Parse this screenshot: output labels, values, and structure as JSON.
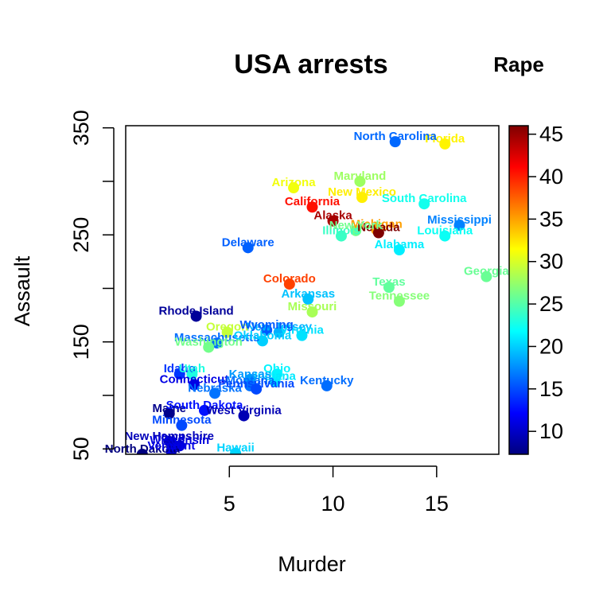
{
  "chart_data": {
    "type": "scatter",
    "title": "USA arrests",
    "xlabel": "Murder",
    "ylabel": "Assault",
    "xlim": [
      0,
      18
    ],
    "ylim": [
      45,
      352
    ],
    "xticks": [
      5,
      10,
      15
    ],
    "yticks": [
      50,
      150,
      250,
      350
    ],
    "grid": false,
    "colorbar": {
      "title": "Rape",
      "min": 7.3,
      "max": 46,
      "ticks": [
        10,
        15,
        20,
        25,
        30,
        35,
        40,
        45
      ],
      "placement": "right",
      "palette": [
        "#00007F",
        "#0000FF",
        "#007FFF",
        "#00FFFF",
        "#7FFF7F",
        "#FFFF00",
        "#FF7F00",
        "#FF0000",
        "#7F0000"
      ]
    },
    "points": [
      {
        "label": "Alabama",
        "x": 13.2,
        "y": 236,
        "color_value": 21.2
      },
      {
        "label": "Alaska",
        "x": 10.0,
        "y": 263,
        "color_value": 44.5
      },
      {
        "label": "Arizona",
        "x": 8.1,
        "y": 294,
        "color_value": 31.0
      },
      {
        "label": "Arkansas",
        "x": 8.8,
        "y": 190,
        "color_value": 19.5
      },
      {
        "label": "California",
        "x": 9.0,
        "y": 276,
        "color_value": 40.6
      },
      {
        "label": "Colorado",
        "x": 7.9,
        "y": 204,
        "color_value": 38.7
      },
      {
        "label": "Connecticut",
        "x": 3.3,
        "y": 110,
        "color_value": 11.1
      },
      {
        "label": "Delaware",
        "x": 5.9,
        "y": 238,
        "color_value": 15.8
      },
      {
        "label": "Florida",
        "x": 15.4,
        "y": 335,
        "color_value": 31.9
      },
      {
        "label": "Georgia",
        "x": 17.4,
        "y": 211,
        "color_value": 25.8
      },
      {
        "label": "Hawaii",
        "x": 5.3,
        "y": 46,
        "color_value": 20.2
      },
      {
        "label": "Idaho",
        "x": 2.6,
        "y": 120,
        "color_value": 14.2
      },
      {
        "label": "Illinois",
        "x": 10.4,
        "y": 249,
        "color_value": 24.0
      },
      {
        "label": "Indiana",
        "x": 7.2,
        "y": 113,
        "color_value": 21.0
      },
      {
        "label": "Iowa",
        "x": 2.2,
        "y": 56,
        "color_value": 11.3
      },
      {
        "label": "Kansas",
        "x": 6.0,
        "y": 115,
        "color_value": 18.0
      },
      {
        "label": "Kentucky",
        "x": 9.7,
        "y": 109,
        "color_value": 16.3
      },
      {
        "label": "Louisiana",
        "x": 15.4,
        "y": 249,
        "color_value": 22.2
      },
      {
        "label": "Maine",
        "x": 2.1,
        "y": 83,
        "color_value": 7.8
      },
      {
        "label": "Maryland",
        "x": 11.3,
        "y": 300,
        "color_value": 27.8
      },
      {
        "label": "Massachusetts",
        "x": 4.4,
        "y": 149,
        "color_value": 16.3
      },
      {
        "label": "Michigan",
        "x": 12.1,
        "y": 255,
        "color_value": 35.1
      },
      {
        "label": "Minnesota",
        "x": 2.7,
        "y": 72,
        "color_value": 14.9
      },
      {
        "label": "Mississippi",
        "x": 16.1,
        "y": 259,
        "color_value": 17.1
      },
      {
        "label": "Missouri",
        "x": 9.0,
        "y": 178,
        "color_value": 28.2
      },
      {
        "label": "Montana",
        "x": 6.0,
        "y": 109,
        "color_value": 16.4
      },
      {
        "label": "Nebraska",
        "x": 4.3,
        "y": 102,
        "color_value": 16.5
      },
      {
        "label": "Nevada",
        "x": 12.2,
        "y": 252,
        "color_value": 46.0
      },
      {
        "label": "New Hampshire",
        "x": 2.1,
        "y": 57,
        "color_value": 9.5
      },
      {
        "label": "New Jersey",
        "x": 7.4,
        "y": 159,
        "color_value": 18.8
      },
      {
        "label": "New Mexico",
        "x": 11.4,
        "y": 285,
        "color_value": 32.1
      },
      {
        "label": "New York",
        "x": 11.1,
        "y": 254,
        "color_value": 26.1
      },
      {
        "label": "North Carolina",
        "x": 13.0,
        "y": 337,
        "color_value": 16.1
      },
      {
        "label": "North Dakota",
        "x": 0.8,
        "y": 45,
        "color_value": 7.3
      },
      {
        "label": "Ohio",
        "x": 7.3,
        "y": 120,
        "color_value": 21.4
      },
      {
        "label": "Oklahoma",
        "x": 6.6,
        "y": 151,
        "color_value": 20.0
      },
      {
        "label": "Oregon",
        "x": 4.9,
        "y": 159,
        "color_value": 29.3
      },
      {
        "label": "Pennsylvania",
        "x": 6.3,
        "y": 106,
        "color_value": 14.9
      },
      {
        "label": "Rhode Island",
        "x": 3.4,
        "y": 174,
        "color_value": 8.3
      },
      {
        "label": "South Carolina",
        "x": 14.4,
        "y": 279,
        "color_value": 22.5
      },
      {
        "label": "South Dakota",
        "x": 3.8,
        "y": 86,
        "color_value": 12.8
      },
      {
        "label": "Tennessee",
        "x": 13.2,
        "y": 188,
        "color_value": 26.9
      },
      {
        "label": "Texas",
        "x": 12.7,
        "y": 201,
        "color_value": 25.5
      },
      {
        "label": "Utah",
        "x": 3.2,
        "y": 120,
        "color_value": 22.9
      },
      {
        "label": "Vermont",
        "x": 2.2,
        "y": 48,
        "color_value": 11.2
      },
      {
        "label": "Virginia",
        "x": 8.5,
        "y": 156,
        "color_value": 20.7
      },
      {
        "label": "Washington",
        "x": 4.0,
        "y": 145,
        "color_value": 26.2
      },
      {
        "label": "West Virginia",
        "x": 5.7,
        "y": 81,
        "color_value": 9.3
      },
      {
        "label": "Wisconsin",
        "x": 2.6,
        "y": 53,
        "color_value": 10.8
      },
      {
        "label": "Wyoming",
        "x": 6.8,
        "y": 161,
        "color_value": 15.6
      }
    ]
  }
}
